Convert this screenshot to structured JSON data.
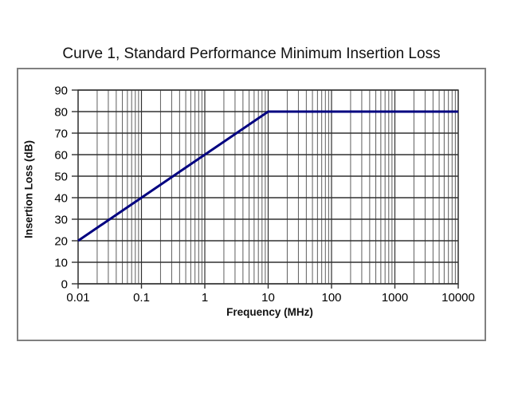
{
  "chart_data": {
    "type": "line",
    "title": "Curve 1, Standard Performance Minimum Insertion Loss",
    "xlabel": "Frequency (MHz)",
    "ylabel": "Insertion Loss (dB)",
    "x_scale": "log",
    "xlim": [
      0.01,
      10000
    ],
    "ylim": [
      0,
      90
    ],
    "x_ticks": [
      0.01,
      0.1,
      1,
      10,
      100,
      1000,
      10000
    ],
    "x_tick_labels": [
      "0.01",
      "0.1",
      "1",
      "10",
      "100",
      "1000",
      "10000"
    ],
    "y_ticks": [
      0,
      10,
      20,
      30,
      40,
      50,
      60,
      70,
      80,
      90
    ],
    "y_tick_labels": [
      "0",
      "10",
      "20",
      "30",
      "40",
      "50",
      "60",
      "70",
      "80",
      "90"
    ],
    "grid": {
      "horizontal": "major",
      "vertical": "major-and-log-minor"
    },
    "legend": "none",
    "series": [
      {
        "name": "Curve 1",
        "color": "#000080",
        "points": [
          [
            0.01,
            20
          ],
          [
            10,
            80
          ],
          [
            10000,
            80
          ]
        ]
      }
    ]
  },
  "colors": {
    "background": "#ffffff",
    "curve": "#000080",
    "grid_major": "#303030",
    "grid_minor": "#5e5e5e",
    "plot_border": "#303030",
    "frame_border": "#808080",
    "text": "#000000"
  }
}
